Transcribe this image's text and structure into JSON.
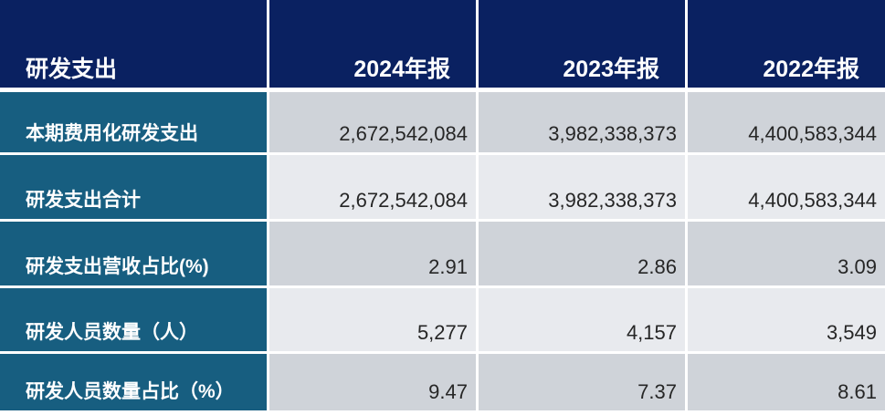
{
  "table": {
    "header": {
      "label": "研发支出",
      "columns": [
        "2024年报",
        "2023年报",
        "2022年报"
      ]
    },
    "rows": [
      {
        "label": "本期费用化研发支出",
        "values": [
          "2,672,542,084",
          "3,982,338,373",
          "4,400,583,344"
        ]
      },
      {
        "label": "研发支出合计",
        "values": [
          "2,672,542,084",
          "3,982,338,373",
          "4,400,583,344"
        ]
      },
      {
        "label": "研发支出营收占比(%)",
        "values": [
          "2.91",
          "2.86",
          "3.09"
        ]
      },
      {
        "label": "研发人员数量（人）",
        "values": [
          "5,277",
          "4,157",
          "3,549"
        ]
      },
      {
        "label": "研发人员数量占比（%）",
        "values": [
          "9.47",
          "7.37",
          "8.61"
        ]
      }
    ],
    "colors": {
      "header_bg": "#0A2161",
      "label_bg": "#175E80",
      "row_dark_bg": "#CFD3D9",
      "row_light_bg": "#E8EAEE",
      "header_text": "#FFFFFF",
      "value_text": "#262626"
    }
  },
  "chart_data": {
    "type": "table",
    "title": "研发支出",
    "columns": [
      "2024年报",
      "2023年报",
      "2022年报"
    ],
    "rows": [
      {
        "label": "本期费用化研发支出",
        "values": [
          2672542084,
          3982338373,
          4400583344
        ]
      },
      {
        "label": "研发支出合计",
        "values": [
          2672542084,
          3982338373,
          4400583344
        ]
      },
      {
        "label": "研发支出营收占比(%)",
        "values": [
          2.91,
          2.86,
          3.09
        ]
      },
      {
        "label": "研发人员数量（人）",
        "values": [
          5277,
          4157,
          3549
        ]
      },
      {
        "label": "研发人员数量占比（%）",
        "values": [
          9.47,
          7.37,
          8.61
        ]
      }
    ],
    "layout_hints": {
      "first_column": "row labels",
      "value_alignment": "right",
      "row_striping": [
        "dark",
        "light",
        "dark",
        "light",
        "dark"
      ]
    }
  }
}
